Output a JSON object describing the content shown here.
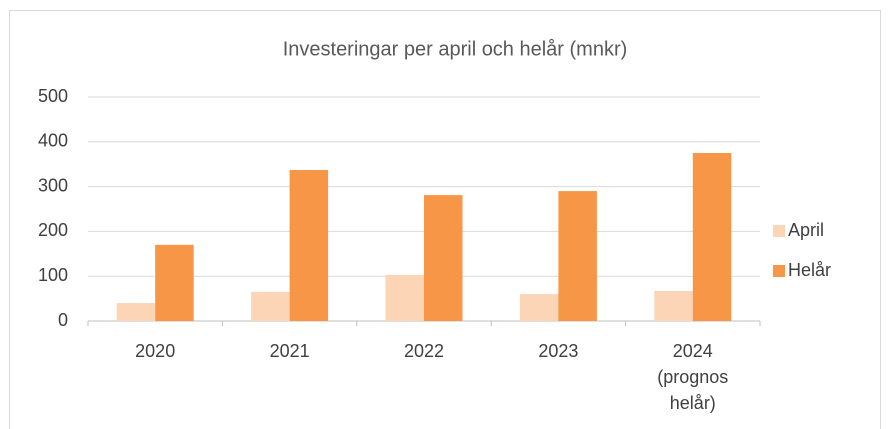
{
  "chart_data": {
    "type": "bar",
    "title": "Investeringar per april och helår (mnkr)",
    "categories": [
      "2020",
      "2021",
      "2022",
      "2023",
      "2024 (prognos helår)"
    ],
    "series": [
      {
        "name": "April",
        "color": "#fbd5b5",
        "values": [
          40,
          65,
          103,
          60,
          67
        ]
      },
      {
        "name": "Helår",
        "color": "#f79646",
        "values": [
          170,
          337,
          281,
          290,
          375
        ]
      }
    ],
    "ylim": [
      0,
      500
    ],
    "yticks": [
      0,
      100,
      200,
      300,
      400,
      500
    ],
    "grid": true,
    "legend": "right"
  }
}
